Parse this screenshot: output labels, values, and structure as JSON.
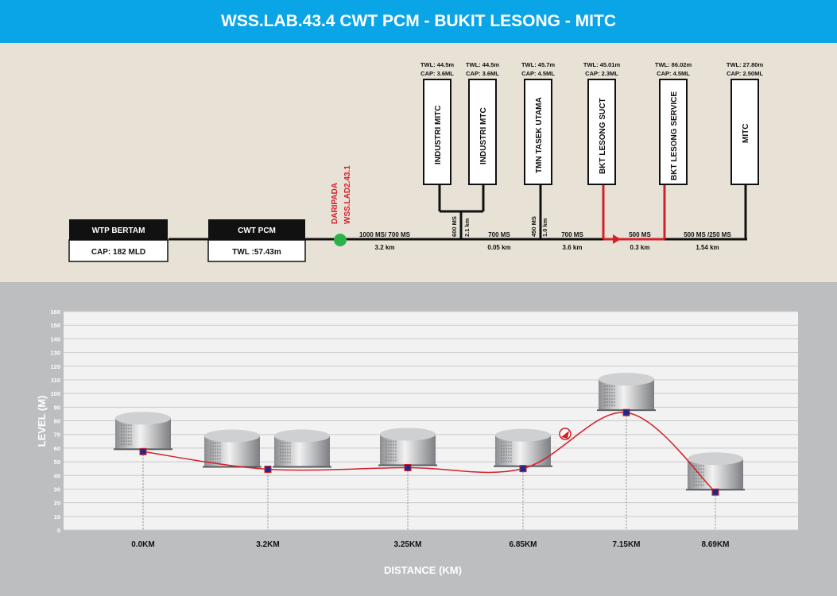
{
  "title": "WSS.LAB.43.4 CWT PCM - BUKIT LESONG - MITC",
  "sources": [
    {
      "name": "WTP BERTAM",
      "value": "CAP: 182 MLD"
    },
    {
      "name": "CWT PCM",
      "value": "TWL :57.43m"
    }
  ],
  "junction": {
    "line1": "DARIPADA",
    "line2": "WSS.LAD2.43.1"
  },
  "tanks": [
    {
      "name": "INDUSTRI MITC",
      "twl": "TWL: 44.5m",
      "cap": "CAP: 3.6ML"
    },
    {
      "name": "INDUSTRI MTC",
      "twl": "TWL: 44.5m",
      "cap": "CAP: 3.6ML"
    },
    {
      "name": "TMN TASEK UTAMA",
      "twl": "TWL: 45.7m",
      "cap": "CAP: 4.5ML"
    },
    {
      "name": "BKT LESONG SUCT",
      "twl": "TWL: 45.01m",
      "cap": "CAP: 2.3ML"
    },
    {
      "name": "BKT LESONG SERVICE",
      "twl": "TWL: 86.02m",
      "cap": "CAP: 4.5ML"
    },
    {
      "name": "MITC",
      "twl": "TWL: 27.80m",
      "cap": "CAP: 2.50ML"
    }
  ],
  "pipes": {
    "seg1": {
      "size": "1000 MS/ 700 MS",
      "len": "3.2 km"
    },
    "seg2": {
      "size": "700 MS",
      "len": "0.05 km"
    },
    "seg3": {
      "size": "700 MS",
      "len": "3.6 km"
    },
    "seg4": {
      "size": "500 MS",
      "len": "0.3 km"
    },
    "seg5": {
      "size": "500 MS /250 MS",
      "len": "1.54 km"
    },
    "branch_mitc_size": "600 MS",
    "branch_mitc_len": "2.1 km",
    "branch_tasek_size": "450 MS",
    "branch_tasek_len": "1.0 km"
  },
  "colors": {
    "pipe": "#111111",
    "pump_line": "#d3202a",
    "junction": "#2bb34a",
    "header": "#0aa5e6",
    "marker": "#1d2a8a"
  },
  "chart_data": {
    "type": "line",
    "xlabel": "DISTANCE (KM)",
    "ylabel": "LEVEL (M)",
    "ylim": [
      0,
      160
    ],
    "yticks": [
      "0",
      "10",
      "20",
      "30",
      "40",
      "50",
      "60",
      "70",
      "80",
      "90",
      "100",
      "110",
      "120",
      "130",
      "140",
      "150",
      "160"
    ],
    "categories": [
      "0.0KM",
      "3.2KM",
      "3.25KM",
      "6.85KM",
      "7.15KM",
      "8.69KM"
    ],
    "values": [
      57.43,
      44.5,
      45.7,
      45.01,
      86.02,
      27.8
    ],
    "grid": true
  }
}
